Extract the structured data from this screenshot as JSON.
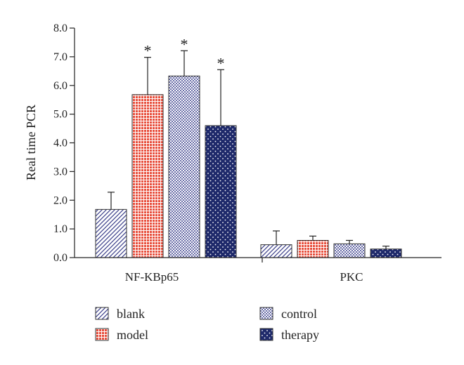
{
  "chart_data": {
    "type": "bar",
    "ylabel": "Real time PCR",
    "ylim": [
      0,
      8
    ],
    "yticks": [
      "0.0",
      "1.0",
      "2.0",
      "3.0",
      "4.0",
      "5.0",
      "6.0",
      "7.0",
      "8.0"
    ],
    "categories": [
      "NF-KBp65",
      "PKC"
    ],
    "series": [
      {
        "name": "blank",
        "values": [
          1.68,
          0.45
        ],
        "errors": [
          0.6,
          0.48
        ],
        "significance": [
          "",
          ""
        ],
        "pattern": "diagonal-hatch",
        "color": "#3b3f8a"
      },
      {
        "name": "model",
        "values": [
          5.68,
          0.6
        ],
        "errors": [
          1.3,
          0.15
        ],
        "significance": [
          "*",
          ""
        ],
        "pattern": "grid",
        "color": "#e8503e"
      },
      {
        "name": "control",
        "values": [
          6.33,
          0.48
        ],
        "errors": [
          0.88,
          0.12
        ],
        "significance": [
          "*",
          ""
        ],
        "pattern": "dots",
        "color": "#5b5fa0"
      },
      {
        "name": "therapy",
        "values": [
          4.6,
          0.3
        ],
        "errors": [
          1.95,
          0.1
        ],
        "significance": [
          "*",
          ""
        ],
        "pattern": "white-dots",
        "color": "#1f2a6b"
      }
    ],
    "legend_position": "bottom",
    "grid": false
  }
}
